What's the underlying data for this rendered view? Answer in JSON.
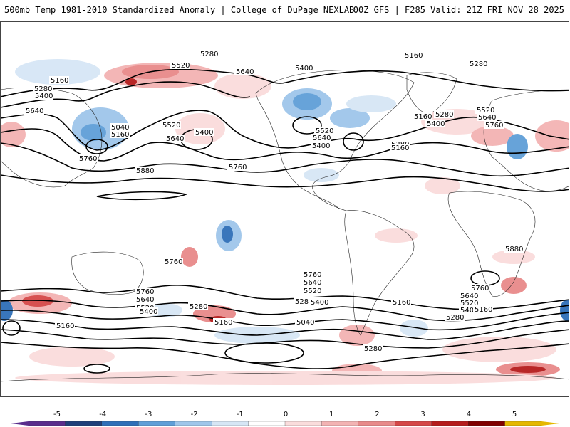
{
  "header": {
    "left_title": "500mb Temp 1981-2010 Standardized Anomaly | College of DuPage NEXLAB",
    "right_title": "00Z GFS | F285 Valid: 21Z FRI NOV 28 2025"
  },
  "map": {
    "projection": "global cylindrical",
    "fill_field": "500mb temperature standardized anomaly",
    "contour_field": "500mb height (dam)",
    "contour_labels": [
      "5280",
      "5160",
      "5520",
      "5400",
      "5640",
      "5160",
      "5280",
      "5280",
      "5400",
      "5640",
      "5040",
      "5160",
      "5520",
      "5400",
      "5640",
      "5760",
      "5880",
      "5760",
      "5160",
      "5280",
      "5520",
      "5640",
      "5400",
      "5760",
      "5520",
      "5640",
      "5400",
      "5280",
      "5160",
      "5760",
      "5880",
      "5760",
      "5640",
      "5520",
      "5400",
      "5280",
      "5160",
      "5760",
      "5640",
      "5520",
      "5400",
      "5280",
      "5160",
      "5040",
      "5400",
      "5760",
      "5640",
      "5520",
      "5400",
      "5280",
      "5160",
      "5280",
      "5160"
    ]
  },
  "colorbar": {
    "ticks": [
      "-5",
      "-4",
      "-3",
      "-2",
      "-1",
      "0",
      "1",
      "2",
      "3",
      "4",
      "5"
    ],
    "colors": [
      "#5a2d8c",
      "#1f3f7a",
      "#2f6fb8",
      "#5f9fd8",
      "#9fc6ea",
      "#d6e6f5",
      "#ffffff",
      "#fadcdc",
      "#f3b3b3",
      "#e88a8a",
      "#d54848",
      "#b51c1c",
      "#800000",
      "#e5b800"
    ]
  }
}
